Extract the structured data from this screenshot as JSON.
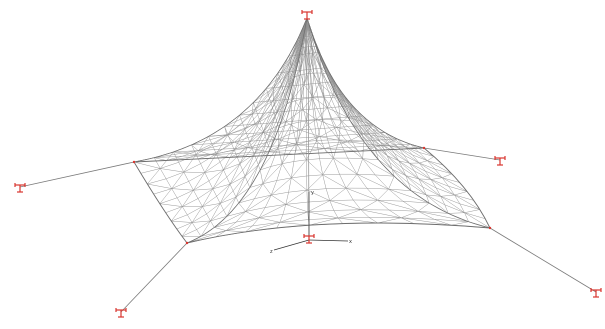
{
  "scene": {
    "background_color": "#ffffff",
    "mesh_color": "#8f8f8f",
    "mesh_outline_color": "#6e6e6e",
    "cable_color": "#7a7a7a",
    "support_color": "#d9352e",
    "axis_color": "#333333",
    "support_icon": "fixed-support-icon"
  },
  "axes": {
    "x_label": "x",
    "y_label": "y",
    "z_label": "z"
  }
}
